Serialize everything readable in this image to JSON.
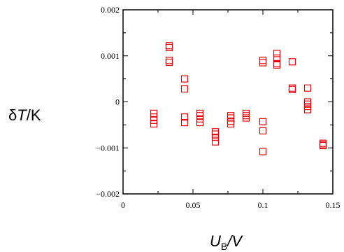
{
  "chart_data": {
    "type": "scatter",
    "ylabel": {
      "prefix": "δ",
      "var": "T",
      "unit": "/K"
    },
    "xlabel": {
      "var": "U",
      "sub": "B",
      "unit": "/V"
    },
    "xlim": [
      0,
      0.15
    ],
    "ylim": [
      -0.002,
      0.002
    ],
    "x_ticks": [
      {
        "value": 0,
        "label": "0"
      },
      {
        "value": 0.05,
        "label": "0.05"
      },
      {
        "value": 0.1,
        "label": "0.1"
      },
      {
        "value": 0.15,
        "label": "0.15"
      }
    ],
    "y_ticks": [
      {
        "value": 0.002,
        "label": "0.002"
      },
      {
        "value": 0.001,
        "label": "0.001"
      },
      {
        "value": 0,
        "label": "0"
      },
      {
        "value": -0.001,
        "label": "−0.001"
      },
      {
        "value": -0.002,
        "label": "−0.002"
      }
    ],
    "grid": false,
    "marker": "open-square",
    "marker_color": "#e8000b",
    "series": [
      {
        "points": [
          [
            0.022,
            -0.00025
          ],
          [
            0.022,
            -0.00033
          ],
          [
            0.022,
            -0.0004
          ],
          [
            0.022,
            -0.00048
          ],
          [
            0.033,
            0.00122
          ],
          [
            0.033,
            0.00118
          ],
          [
            0.033,
            0.0009
          ],
          [
            0.033,
            0.00086
          ],
          [
            0.044,
            0.0005
          ],
          [
            0.044,
            0.00028
          ],
          [
            0.044,
            -0.00033
          ],
          [
            0.044,
            -0.00045
          ],
          [
            0.055,
            -0.00025
          ],
          [
            0.055,
            -0.0003
          ],
          [
            0.055,
            -0.00037
          ],
          [
            0.055,
            -0.00045
          ],
          [
            0.066,
            -0.00065
          ],
          [
            0.066,
            -0.0007
          ],
          [
            0.066,
            -0.00077
          ],
          [
            0.066,
            -0.00087
          ],
          [
            0.077,
            -0.0003
          ],
          [
            0.077,
            -0.00035
          ],
          [
            0.077,
            -0.00042
          ],
          [
            0.077,
            -0.00048
          ],
          [
            0.088,
            -0.00025
          ],
          [
            0.088,
            -0.0003
          ],
          [
            0.088,
            -0.00035
          ],
          [
            0.1,
            0.0009
          ],
          [
            0.1,
            0.00085
          ],
          [
            0.1,
            -0.00043
          ],
          [
            0.1,
            -0.00063
          ],
          [
            0.1,
            -0.00108
          ],
          [
            0.11,
            0.00105
          ],
          [
            0.11,
            0.00095
          ],
          [
            0.11,
            0.00083
          ],
          [
            0.11,
            0.0008
          ],
          [
            0.121,
            0.00087
          ],
          [
            0.121,
            0.0003
          ],
          [
            0.121,
            0.00027
          ],
          [
            0.132,
            0.0003
          ],
          [
            0.132,
            -0.0
          ],
          [
            0.132,
            -5e-05
          ],
          [
            0.132,
            -0.0001
          ],
          [
            0.132,
            -0.00017
          ],
          [
            0.143,
            -0.0009
          ],
          [
            0.143,
            -0.00093
          ],
          [
            0.143,
            -0.00095
          ]
        ]
      }
    ]
  }
}
